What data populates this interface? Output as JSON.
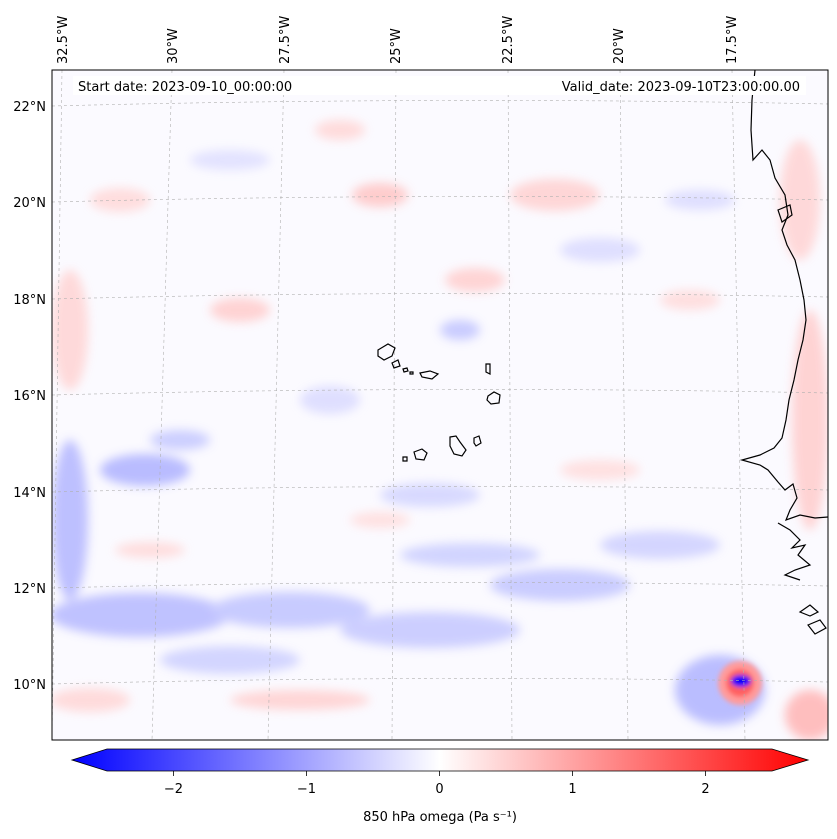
{
  "header": {
    "start_date": "Start date: 2023-09-10_00:00:00",
    "valid_date": "Valid_date: 2023-09-10T23:00:00.00"
  },
  "longitude_labels": [
    "32.5°W",
    "30°W",
    "27.5°W",
    "25°W",
    "22.5°W",
    "20°W",
    "17.5°W"
  ],
  "latitude_labels": [
    "22°N",
    "20°N",
    "18°N",
    "16°N",
    "14°N",
    "12°N",
    "10°N"
  ],
  "colorbar": {
    "label": "850 hPa omega (Pa s⁻¹)",
    "ticks": [
      "−2",
      "−1",
      "0",
      "1",
      "2"
    ],
    "tick_values": [
      -2,
      -1,
      0,
      1,
      2
    ],
    "range": [
      -2.5,
      2.5
    ],
    "min_color": "#0000ff",
    "mid_color": "#ffffff",
    "max_color": "#ff0000"
  },
  "colors": {
    "coast": "#000000",
    "grid": "#b0b0b0"
  }
}
